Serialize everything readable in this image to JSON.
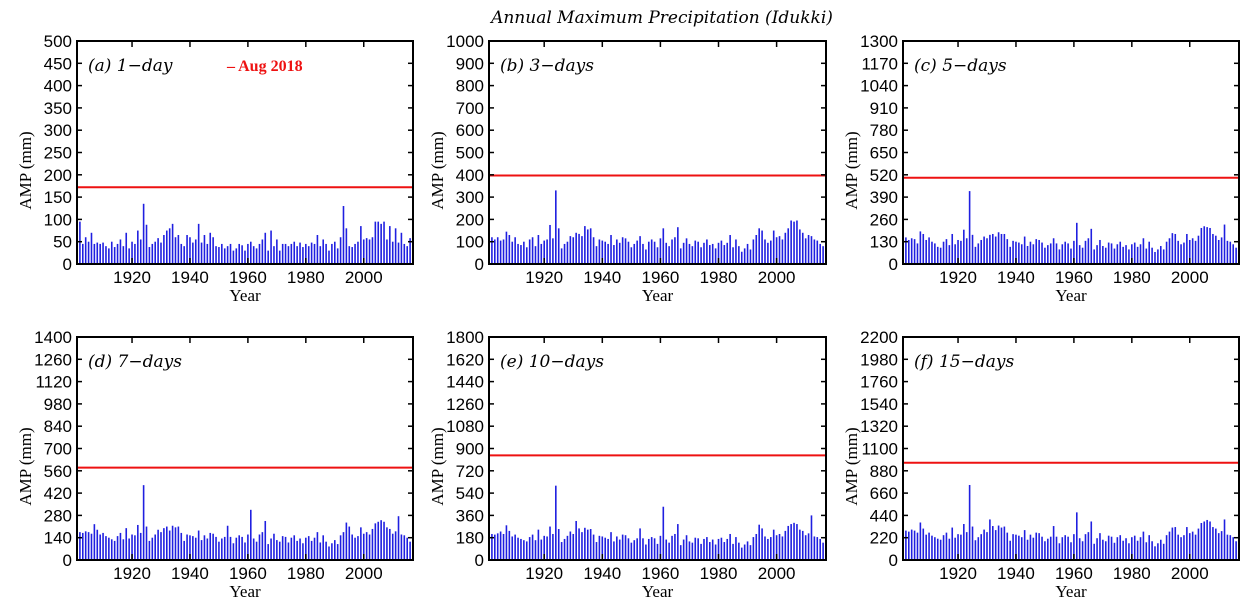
{
  "figure_title": "Annual Maximum Precipitation (Idukki)",
  "colors": {
    "bar": "#1f1fe0",
    "reference_line": "#ee1111",
    "axis": "#000000"
  },
  "chart_data": [
    {
      "type": "bar",
      "panel_label": "(a) 1-day",
      "xlabel": "Year",
      "ylabel": "AMP (mm)",
      "xlim": [
        1901,
        2017
      ],
      "ylim": [
        0,
        500
      ],
      "yticks": [
        0,
        50,
        100,
        150,
        200,
        250,
        300,
        350,
        400,
        450,
        500
      ],
      "xticks": [
        1920,
        1940,
        1960,
        1980,
        2000
      ],
      "reference": {
        "name": "Aug 2018",
        "value": 172
      },
      "x_start": 1901,
      "values": [
        38,
        95,
        45,
        60,
        50,
        70,
        45,
        48,
        45,
        48,
        40,
        35,
        50,
        38,
        45,
        55,
        40,
        70,
        35,
        50,
        45,
        75,
        55,
        135,
        88,
        38,
        45,
        50,
        58,
        48,
        65,
        75,
        80,
        90,
        60,
        65,
        45,
        40,
        65,
        60,
        48,
        55,
        90,
        48,
        65,
        45,
        70,
        60,
        40,
        38,
        45,
        35,
        40,
        45,
        30,
        35,
        45,
        42,
        30,
        45,
        50,
        40,
        35,
        45,
        55,
        70,
        30,
        75,
        40,
        55,
        30,
        45,
        45,
        40,
        45,
        50,
        40,
        48,
        38,
        45,
        40,
        48,
        45,
        65,
        40,
        55,
        45,
        30,
        45,
        50,
        35,
        60,
        130,
        80,
        40,
        38,
        45,
        50,
        85,
        55,
        58,
        55,
        60,
        95,
        95,
        90,
        95,
        55,
        85,
        50,
        80,
        48,
        70,
        45,
        40,
        58,
        48
      ]
    },
    {
      "type": "bar",
      "panel_label": "(b) 3-days",
      "xlabel": "Year",
      "ylabel": "AMP (mm)",
      "xlim": [
        1901,
        2017
      ],
      "ylim": [
        0,
        1000
      ],
      "yticks": [
        0,
        100,
        200,
        300,
        400,
        500,
        600,
        700,
        800,
        900,
        1000
      ],
      "xticks": [
        1920,
        1940,
        1960,
        1980,
        2000
      ],
      "reference": {
        "value": 397
      },
      "x_start": 1901,
      "values": [
        120,
        120,
        110,
        120,
        105,
        110,
        145,
        130,
        100,
        120,
        90,
        85,
        100,
        75,
        110,
        120,
        80,
        130,
        90,
        105,
        110,
        175,
        115,
        330,
        160,
        70,
        90,
        100,
        125,
        120,
        140,
        135,
        125,
        170,
        155,
        160,
        120,
        80,
        110,
        105,
        100,
        90,
        130,
        85,
        110,
        95,
        120,
        115,
        100,
        75,
        90,
        105,
        125,
        90,
        65,
        100,
        110,
        100,
        75,
        115,
        160,
        95,
        80,
        110,
        120,
        165,
        70,
        95,
        115,
        90,
        80,
        105,
        100,
        75,
        95,
        110,
        85,
        90,
        70,
        95,
        105,
        85,
        95,
        130,
        75,
        110,
        80,
        55,
        70,
        90,
        65,
        110,
        130,
        160,
        150,
        110,
        95,
        105,
        150,
        120,
        125,
        110,
        140,
        160,
        195,
        190,
        195,
        155,
        140,
        115,
        130,
        125,
        110,
        105,
        90,
        80,
        110
      ]
    },
    {
      "type": "bar",
      "panel_label": "(c) 5-days",
      "xlabel": "Year",
      "ylabel": "AMP (mm)",
      "xlim": [
        1901,
        2017
      ],
      "ylim": [
        0,
        1300
      ],
      "yticks": [
        0,
        130,
        260,
        390,
        520,
        650,
        780,
        910,
        1040,
        1170,
        1300
      ],
      "xticks": [
        1920,
        1940,
        1960,
        1980,
        2000
      ],
      "reference": {
        "value": 503
      },
      "x_start": 1901,
      "values": [
        160,
        155,
        140,
        150,
        145,
        120,
        190,
        175,
        140,
        155,
        130,
        120,
        100,
        95,
        130,
        145,
        110,
        175,
        115,
        140,
        135,
        200,
        150,
        425,
        170,
        100,
        120,
        140,
        160,
        150,
        170,
        175,
        160,
        185,
        175,
        175,
        145,
        100,
        135,
        130,
        125,
        115,
        160,
        105,
        130,
        115,
        145,
        140,
        125,
        95,
        110,
        120,
        150,
        120,
        85,
        115,
        130,
        120,
        90,
        135,
        240,
        110,
        95,
        135,
        150,
        205,
        85,
        110,
        140,
        105,
        95,
        125,
        120,
        90,
        115,
        130,
        100,
        110,
        85,
        115,
        125,
        100,
        115,
        150,
        90,
        130,
        95,
        70,
        85,
        105,
        85,
        130,
        150,
        180,
        175,
        135,
        115,
        125,
        175,
        140,
        150,
        135,
        165,
        210,
        220,
        215,
        210,
        175,
        165,
        140,
        155,
        230,
        135,
        130,
        115,
        95,
        135
      ]
    },
    {
      "type": "bar",
      "panel_label": "(d) 7-days",
      "xlabel": "Year",
      "ylabel": "AMP (mm)",
      "xlim": [
        1901,
        2017
      ],
      "ylim": [
        0,
        1400
      ],
      "yticks": [
        0,
        140,
        280,
        420,
        560,
        700,
        840,
        980,
        1120,
        1260,
        1400
      ],
      "xticks": [
        1920,
        1940,
        1960,
        1980,
        2000
      ],
      "reference": {
        "value": 580
      },
      "x_start": 1901,
      "values": [
        180,
        175,
        170,
        180,
        175,
        165,
        225,
        190,
        160,
        170,
        150,
        140,
        130,
        120,
        150,
        170,
        130,
        200,
        135,
        160,
        155,
        220,
        170,
        470,
        210,
        120,
        140,
        160,
        190,
        175,
        200,
        210,
        185,
        215,
        205,
        210,
        170,
        120,
        160,
        155,
        150,
        140,
        185,
        125,
        155,
        135,
        170,
        165,
        145,
        115,
        135,
        145,
        215,
        145,
        105,
        140,
        155,
        145,
        110,
        160,
        315,
        135,
        115,
        160,
        175,
        245,
        100,
        135,
        165,
        125,
        115,
        150,
        145,
        110,
        140,
        155,
        120,
        135,
        105,
        140,
        150,
        120,
        140,
        175,
        110,
        155,
        115,
        85,
        105,
        125,
        100,
        155,
        175,
        235,
        210,
        160,
        140,
        150,
        205,
        165,
        175,
        160,
        195,
        230,
        240,
        250,
        240,
        205,
        195,
        165,
        180,
        275,
        160,
        155,
        140,
        115,
        160
      ]
    },
    {
      "type": "bar",
      "panel_label": "(e) 10-days",
      "xlabel": "Year",
      "ylabel": "AMP (mm)",
      "xlim": [
        1901,
        2017
      ],
      "ylim": [
        0,
        1800
      ],
      "yticks": [
        0,
        180,
        360,
        540,
        720,
        900,
        1080,
        1260,
        1440,
        1620,
        1800
      ],
      "xticks": [
        1920,
        1940,
        1960,
        1980,
        2000
      ],
      "reference": {
        "value": 845
      },
      "x_start": 1901,
      "values": [
        220,
        210,
        205,
        215,
        230,
        210,
        280,
        235,
        190,
        205,
        180,
        170,
        160,
        150,
        185,
        205,
        160,
        245,
        165,
        195,
        190,
        270,
        210,
        600,
        250,
        145,
        170,
        195,
        230,
        210,
        315,
        255,
        225,
        260,
        245,
        250,
        205,
        145,
        195,
        190,
        180,
        170,
        225,
        150,
        190,
        165,
        205,
        200,
        175,
        140,
        160,
        175,
        255,
        175,
        125,
        170,
        185,
        175,
        130,
        195,
        430,
        165,
        140,
        195,
        210,
        290,
        120,
        165,
        200,
        150,
        140,
        180,
        175,
        130,
        170,
        185,
        145,
        165,
        125,
        170,
        180,
        145,
        170,
        210,
        130,
        185,
        140,
        100,
        125,
        150,
        120,
        185,
        210,
        285,
        255,
        190,
        170,
        185,
        245,
        200,
        210,
        190,
        235,
        275,
        290,
        300,
        290,
        245,
        235,
        200,
        215,
        360,
        190,
        185,
        170,
        140,
        190
      ]
    },
    {
      "type": "bar",
      "panel_label": "(f) 15-days",
      "xlabel": "Year",
      "ylabel": "AMP (mm)",
      "xlim": [
        1901,
        2017
      ],
      "ylim": [
        0,
        2200
      ],
      "yticks": [
        0,
        220,
        440,
        660,
        880,
        1100,
        1320,
        1540,
        1760,
        1980,
        2200
      ],
      "xticks": [
        1920,
        1940,
        1960,
        1980,
        2000
      ],
      "reference": {
        "value": 960
      },
      "x_start": 1901,
      "values": [
        300,
        290,
        280,
        300,
        290,
        270,
        370,
        310,
        250,
        270,
        240,
        225,
        210,
        200,
        245,
        270,
        210,
        320,
        220,
        255,
        250,
        355,
        275,
        740,
        330,
        195,
        225,
        255,
        300,
        275,
        400,
        335,
        295,
        340,
        320,
        330,
        270,
        190,
        255,
        250,
        240,
        225,
        295,
        200,
        250,
        220,
        270,
        265,
        230,
        185,
        210,
        230,
        335,
        230,
        165,
        225,
        245,
        230,
        175,
        255,
        470,
        215,
        185,
        255,
        275,
        380,
        160,
        215,
        265,
        200,
        185,
        240,
        230,
        170,
        225,
        245,
        190,
        215,
        165,
        225,
        240,
        190,
        225,
        280,
        175,
        245,
        185,
        135,
        165,
        200,
        160,
        245,
        280,
        320,
        325,
        250,
        225,
        245,
        325,
        265,
        280,
        250,
        310,
        365,
        380,
        395,
        380,
        325,
        310,
        265,
        285,
        400,
        250,
        245,
        225,
        185,
        250
      ]
    }
  ]
}
